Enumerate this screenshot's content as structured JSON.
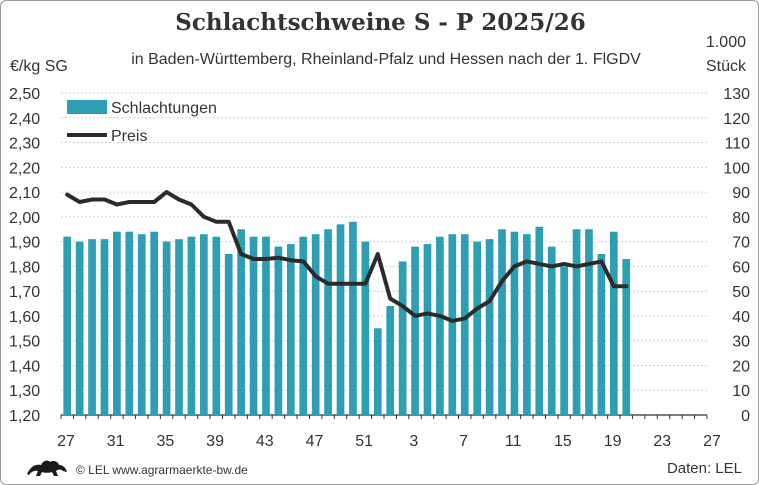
{
  "title": "Schlachtschweine S - P 2025/26",
  "subtitle": "in Baden-Württemberg, Rheinland-Pfalz und Hessen nach der 1. FlGDV",
  "unit_left": "€/kg SG",
  "unit_right_line1": "1.000",
  "unit_right_line2": "Stück",
  "source": "© LEL www.agrarmaerkte-bw.de",
  "data_credit": "Daten: LEL",
  "colors": {
    "bars": "#2e9fb3",
    "line": "#2b2b2b",
    "grid": "#d0d0d0"
  },
  "chart_data": {
    "type": "bar+line",
    "weeks": [
      27,
      28,
      29,
      30,
      31,
      32,
      33,
      34,
      35,
      36,
      37,
      38,
      39,
      40,
      41,
      42,
      43,
      44,
      45,
      46,
      47,
      48,
      49,
      50,
      51,
      52,
      1,
      2,
      3,
      4,
      5,
      6,
      7,
      8,
      9,
      10,
      11,
      12,
      13,
      14,
      15,
      16,
      17,
      18,
      19,
      20,
      21,
      22,
      23,
      24,
      25,
      26,
      27
    ],
    "x_tick_labels": [
      "27",
      "31",
      "35",
      "39",
      "43",
      "47",
      "51",
      "3",
      "7",
      "11",
      "15",
      "19",
      "23",
      "27"
    ],
    "y_left_ticks": [
      "1,20",
      "1,30",
      "1,40",
      "1,50",
      "1,60",
      "1,70",
      "1,80",
      "1,90",
      "2,00",
      "2,10",
      "2,20",
      "2,30",
      "2,40",
      "2,50"
    ],
    "y_left_range": [
      1.2,
      2.5
    ],
    "y_right_ticks": [
      "0",
      "10",
      "20",
      "30",
      "40",
      "50",
      "60",
      "70",
      "80",
      "90",
      "100",
      "110",
      "120",
      "130"
    ],
    "y_right_range": [
      0,
      130
    ],
    "series": [
      {
        "name": "Schlachtungen",
        "kind": "bar",
        "axis": "right",
        "values": [
          72,
          70,
          71,
          71,
          74,
          74,
          73,
          74,
          70,
          71,
          72,
          73,
          72,
          65,
          75,
          72,
          72,
          68,
          69,
          72,
          73,
          75,
          77,
          78,
          70,
          35,
          44,
          62,
          68,
          69,
          72,
          73,
          73,
          70,
          71,
          75,
          74,
          73,
          76,
          68,
          60,
          75,
          75,
          65,
          74,
          63
        ]
      },
      {
        "name": "Preis",
        "kind": "line",
        "axis": "left",
        "values": [
          2.09,
          2.06,
          2.07,
          2.07,
          2.05,
          2.06,
          2.06,
          2.06,
          2.1,
          2.07,
          2.05,
          2.0,
          1.98,
          1.98,
          1.85,
          1.83,
          1.83,
          1.835,
          1.825,
          1.82,
          1.76,
          1.73,
          1.73,
          1.73,
          1.73,
          1.85,
          1.67,
          1.64,
          1.6,
          1.61,
          1.6,
          1.58,
          1.59,
          1.63,
          1.66,
          1.74,
          1.8,
          1.82,
          1.81,
          1.8,
          1.81,
          1.8,
          1.81,
          1.82,
          1.72,
          1.72
        ]
      }
    ],
    "legend": [
      "Schlachtungen",
      "Preis"
    ],
    "legend_position": "top-left",
    "grid": true
  }
}
